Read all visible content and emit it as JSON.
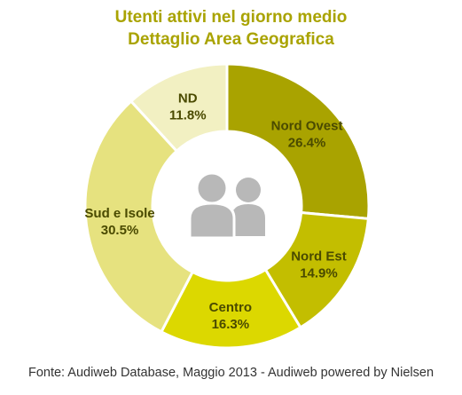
{
  "chart_data": {
    "type": "pie",
    "subtype": "donut",
    "title_lines": [
      "Utenti attivi nel giorno medio",
      "Dettaglio Area Geografica"
    ],
    "slices": [
      {
        "label": "Nord Ovest",
        "value_label": "26.4%",
        "value": 26.4,
        "color": "#a9a300"
      },
      {
        "label": "Nord Est",
        "value_label": "14.9%",
        "value": 14.9,
        "color": "#c3be00"
      },
      {
        "label": "Centro",
        "value_label": "16.3%",
        "value": 16.3,
        "color": "#dcd800"
      },
      {
        "label": "Sud e Isole",
        "value_label": "30.5%",
        "value": 30.5,
        "color": "#e6e27f"
      },
      {
        "label": "ND",
        "value_label": "11.8%",
        "value": 11.8,
        "color": "#f2f0c2"
      }
    ],
    "start_at": "top",
    "direction": "clockwise",
    "center_icon": "users-icon",
    "legend": "none"
  },
  "colors": {
    "title": "#a9a300",
    "label_text": "#4a4a00",
    "icon": "#b8b8b8",
    "slice_border": "#ffffff"
  },
  "source": "Fonte: Audiweb Database, Maggio 2013 - Audiweb powered by Nielsen"
}
